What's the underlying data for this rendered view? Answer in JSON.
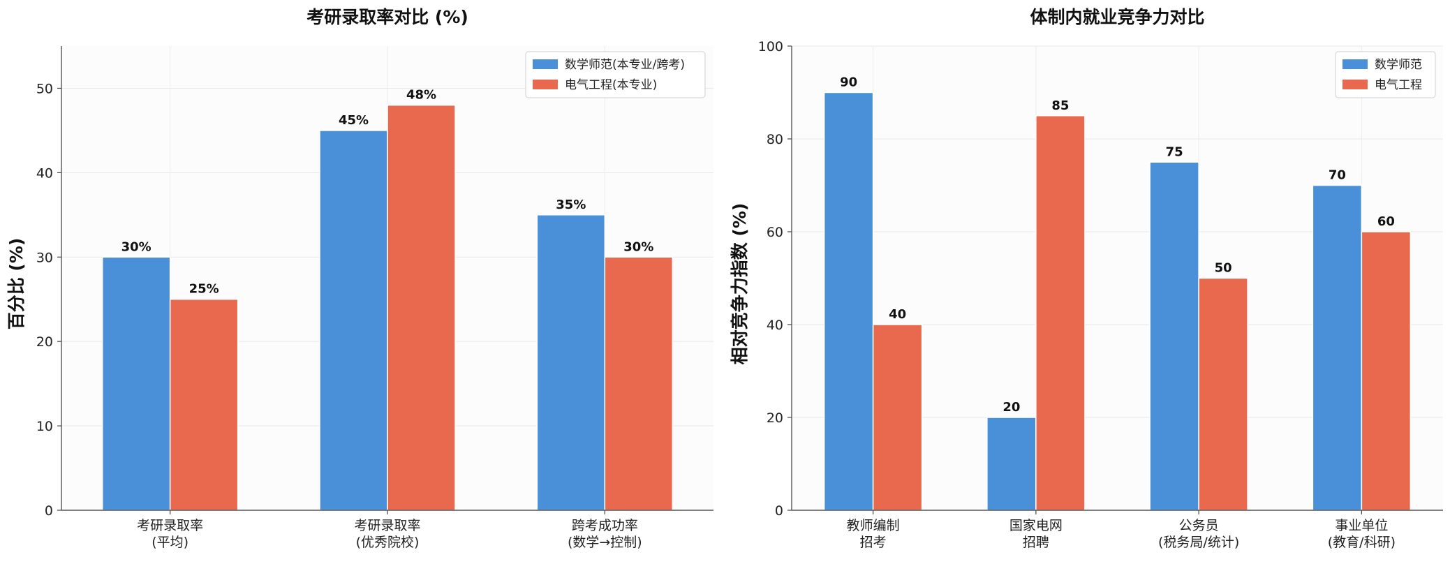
{
  "colors": {
    "math": "#4a90d9",
    "elec": "#e8694e"
  },
  "chart_data": [
    {
      "type": "bar",
      "title": "考研录取率对比 (%)",
      "xlabel": "",
      "ylabel": "百分比 (%)",
      "ylim": [
        0,
        55
      ],
      "yticks": [
        0,
        10,
        20,
        30,
        40,
        50
      ],
      "grid": true,
      "legend_position": "top-right",
      "categories": [
        [
          "考研录取率",
          "(平均)"
        ],
        [
          "考研录取率",
          "(优秀院校)"
        ],
        [
          "跨考成功率",
          "(数学→控制)"
        ]
      ],
      "series": [
        {
          "name": "数学师范(本专业/跨考)",
          "values": [
            30,
            45,
            35
          ],
          "labels": [
            "30%",
            "45%",
            "35%"
          ]
        },
        {
          "name": "电气工程(本专业)",
          "values": [
            25,
            48,
            30
          ],
          "labels": [
            "25%",
            "48%",
            "30%"
          ]
        }
      ]
    },
    {
      "type": "bar",
      "title": "体制内就业竞争力对比",
      "xlabel": "",
      "ylabel": "相对竞争力指数 (%)",
      "ylim": [
        0,
        100
      ],
      "yticks": [
        0,
        20,
        40,
        60,
        80,
        100
      ],
      "grid": true,
      "legend_position": "top-right",
      "categories": [
        [
          "教师编制",
          "招考"
        ],
        [
          "国家电网",
          "招聘"
        ],
        [
          "公务员",
          "(税务局/统计)"
        ],
        [
          "事业单位",
          "(教育/科研)"
        ]
      ],
      "series": [
        {
          "name": "数学师范",
          "values": [
            90,
            20,
            75,
            70
          ],
          "labels": [
            "90",
            "20",
            "75",
            "70"
          ]
        },
        {
          "name": "电气工程",
          "values": [
            40,
            85,
            50,
            60
          ],
          "labels": [
            "40",
            "85",
            "50",
            "60"
          ]
        }
      ]
    }
  ]
}
